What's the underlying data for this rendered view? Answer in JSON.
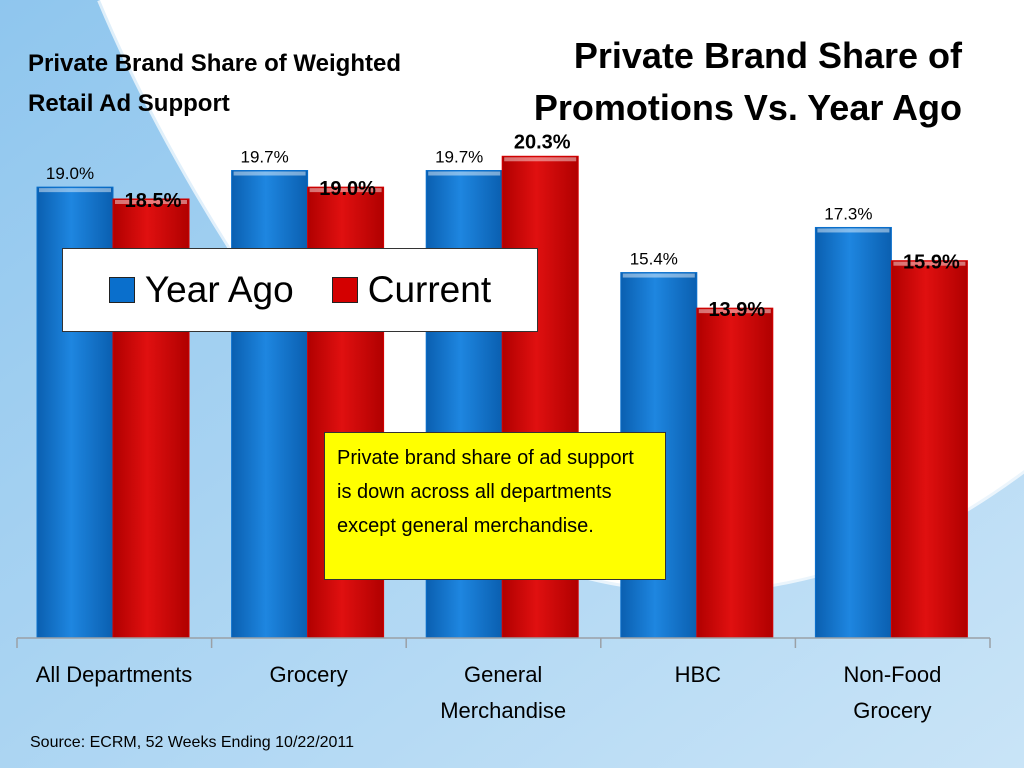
{
  "title": "Private Brand Share of Promotions Vs. Year Ago",
  "subtitle": "Private Brand Share of Weighted Retail Ad Support",
  "note": "Private brand share of ad support is down across all departments except general merchandise.",
  "source": "Source:  ECRM, 52 Weeks Ending 10/22/2011",
  "colors": {
    "year_ago": "#0a6fcc",
    "current": "#d40000",
    "note_bg": "#ffff00"
  },
  "chart_data": {
    "type": "bar",
    "title": "Private Brand Share of Promotions Vs. Year Ago",
    "categories": [
      "All Departments",
      "Grocery",
      "General\nMerchandise",
      "HBC",
      "Non-Food\nGrocery"
    ],
    "series": [
      {
        "name": "Year Ago",
        "values": [
          19.0,
          19.7,
          19.7,
          15.4,
          17.3
        ],
        "labels": [
          "19.0%",
          "19.7%",
          "19.7%",
          "15.4%",
          "17.3%"
        ]
      },
      {
        "name": "Current",
        "values": [
          18.5,
          19.0,
          20.3,
          13.9,
          15.9
        ],
        "labels": [
          "18.5%",
          "19.0%",
          "20.3%",
          "13.9%",
          "15.9%"
        ]
      }
    ],
    "ylim": [
      0,
      25.2
    ],
    "grid": false,
    "legend": "top-left"
  }
}
